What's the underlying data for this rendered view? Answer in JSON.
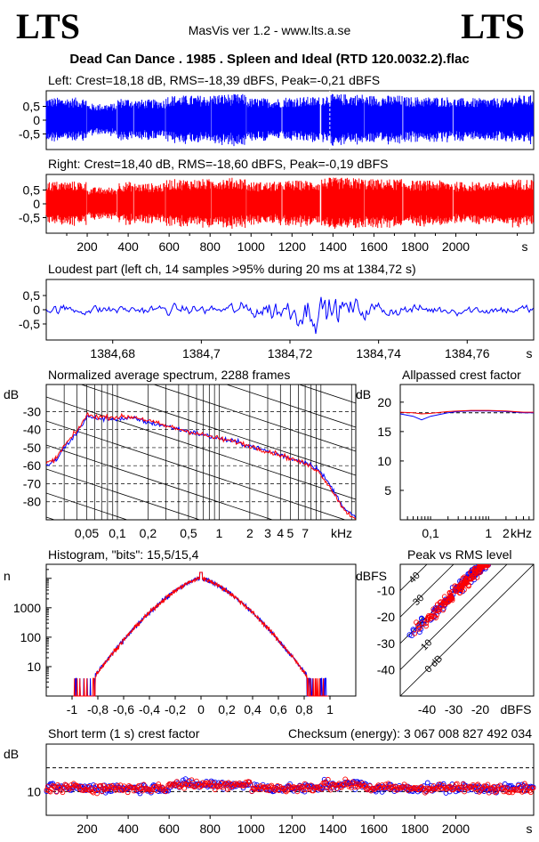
{
  "header": {
    "logo_left": "LTS",
    "logo_right": "LTS",
    "app": "MasVis ver 1.2 - www.lts.a.se",
    "track": "Dead Can Dance . 1985 . Spleen and Ideal (RTD 120.0032.2).flac"
  },
  "colors": {
    "left": "#0000ff",
    "right": "#ff0000",
    "axis": "#000000",
    "background": "#ffffff"
  },
  "chart_data": [
    {
      "id": "left",
      "type": "area",
      "title": "Left: Crest=18,18 dB, RMS=-18,39 dBFS, Peak=-0,21 dBFS",
      "color": "#0000ff",
      "y_ticks": [
        "0,5",
        "0",
        "-0,5"
      ],
      "ylim": [
        -1,
        1
      ],
      "xlim": [
        0,
        2380
      ],
      "segments": [
        [
          0,
          195,
          0.82
        ],
        [
          200,
          345,
          0.6
        ],
        [
          350,
          425,
          0.8
        ],
        [
          430,
          580,
          0.75
        ],
        [
          585,
          805,
          0.9
        ],
        [
          810,
          975,
          0.95
        ],
        [
          980,
          1150,
          0.8
        ],
        [
          1155,
          1335,
          0.85
        ],
        [
          1345,
          1550,
          0.95
        ],
        [
          1555,
          1740,
          0.9
        ],
        [
          1745,
          1985,
          0.85
        ],
        [
          1990,
          2260,
          0.8
        ],
        [
          2262,
          2380,
          0.9
        ]
      ],
      "marker_x": 1384.72
    },
    {
      "id": "right",
      "type": "area",
      "title": "Right: Crest=18,40 dB, RMS=-18,60 dBFS, Peak=-0,19 dBFS",
      "color": "#ff0000",
      "y_ticks": [
        "0,5",
        "0",
        "-0,5"
      ],
      "ylim": [
        -1,
        1
      ],
      "xlim": [
        0,
        2380
      ],
      "x_ticks": [
        "200",
        "400",
        "600",
        "800",
        "1000",
        "1200",
        "1400",
        "1600",
        "1800",
        "2000"
      ],
      "x_unit": "s",
      "segments": [
        [
          0,
          195,
          0.82
        ],
        [
          200,
          345,
          0.6
        ],
        [
          350,
          425,
          0.8
        ],
        [
          430,
          580,
          0.75
        ],
        [
          585,
          805,
          0.9
        ],
        [
          810,
          975,
          0.95
        ],
        [
          980,
          1150,
          0.8
        ],
        [
          1155,
          1335,
          0.85
        ],
        [
          1345,
          1550,
          0.95
        ],
        [
          1555,
          1740,
          0.9
        ],
        [
          1745,
          1985,
          0.85
        ],
        [
          1990,
          2260,
          0.8
        ],
        [
          2262,
          2380,
          0.9
        ]
      ]
    },
    {
      "id": "loudest",
      "type": "line",
      "title": "Loudest part (left  ch, 14 samples >95% during 20 ms at 1384,72 s)",
      "color": "#0000ff",
      "y_ticks": [
        "0,5",
        "0",
        "-0,5"
      ],
      "ylim": [
        -1,
        1
      ],
      "xlim": [
        1384.665,
        1384.775
      ],
      "x_ticks": [
        "1384,68",
        "1384,7",
        "1384,72",
        "1384,74",
        "1384,76"
      ],
      "x_tick_values": [
        1384.68,
        1384.7,
        1384.72,
        1384.74,
        1384.76
      ],
      "x_unit": "s"
    },
    {
      "id": "spectrum",
      "type": "line",
      "title": "Normalized average spectrum, 2288 frames",
      "ylabel": "dB",
      "y_ticks": [
        "-30",
        "-40",
        "-50",
        "-60",
        "-70",
        "-80"
      ],
      "y_tick_values": [
        -30,
        -40,
        -50,
        -60,
        -70,
        -80
      ],
      "ylim": [
        -90,
        -15
      ],
      "x_ticks": [
        "0,05",
        "0,1",
        "0,2",
        "0,5",
        "1",
        "2",
        "3",
        "4",
        "5",
        "7"
      ],
      "x_tick_values": [
        0.05,
        0.1,
        0.2,
        0.5,
        1,
        2,
        3,
        4,
        5,
        7
      ],
      "x_unit": "kHz",
      "x_scale": "log",
      "xlim": [
        0.02,
        22
      ],
      "series": [
        {
          "color": "#0000ff",
          "x": [
            0.02,
            0.025,
            0.03,
            0.04,
            0.05,
            0.07,
            0.1,
            0.15,
            0.2,
            0.3,
            0.5,
            0.7,
            1,
            1.5,
            2,
            3,
            4,
            5,
            7,
            9,
            11,
            13,
            15,
            18,
            22
          ],
          "y": [
            -60,
            -57,
            -50,
            -42,
            -33,
            -34,
            -34,
            -34,
            -36,
            -38,
            -41,
            -43,
            -45,
            -47,
            -49,
            -52,
            -54,
            -56,
            -58,
            -61,
            -67,
            -73,
            -79,
            -85,
            -89
          ]
        },
        {
          "color": "#ff0000",
          "x": [
            0.02,
            0.025,
            0.03,
            0.04,
            0.05,
            0.07,
            0.1,
            0.15,
            0.2,
            0.3,
            0.5,
            0.7,
            1,
            1.5,
            2,
            3,
            4,
            5,
            7,
            9,
            11,
            13,
            15,
            18,
            22
          ],
          "y": [
            -59,
            -56,
            -49,
            -41,
            -32,
            -33,
            -33,
            -33,
            -35,
            -38,
            -41,
            -43,
            -45,
            -47,
            -49,
            -52,
            -54,
            -56,
            -59,
            -62,
            -68,
            -74,
            -80,
            -86,
            -89
          ]
        }
      ]
    },
    {
      "id": "allpass",
      "type": "line",
      "title": "Allpassed crest factor",
      "ylabel": "dB",
      "y_ticks": [
        "20",
        "15",
        "10",
        "5"
      ],
      "y_tick_values": [
        20,
        15,
        10,
        5
      ],
      "ylim": [
        0,
        23
      ],
      "x_ticks": [
        "0,1",
        "1",
        "2",
        "kHz"
      ],
      "x_tick_values": [
        0.1,
        1,
        2
      ],
      "x_scale": "log",
      "xlim": [
        0.03,
        6
      ],
      "reference": 18.2,
      "series": [
        {
          "color": "#0000ff",
          "x": [
            0.03,
            0.05,
            0.07,
            0.1,
            0.2,
            0.3,
            0.5,
            1,
            2,
            4,
            6
          ],
          "y": [
            18.0,
            17.6,
            17.0,
            17.6,
            18.2,
            18.4,
            18.5,
            18.5,
            18.4,
            18.2,
            18.2
          ]
        },
        {
          "color": "#ff0000",
          "x": [
            0.03,
            0.05,
            0.07,
            0.1,
            0.2,
            0.3,
            0.5,
            1,
            2,
            4,
            6
          ],
          "y": [
            18.3,
            18.2,
            18.0,
            18.1,
            18.4,
            18.5,
            18.6,
            18.6,
            18.5,
            18.3,
            18.3
          ]
        }
      ]
    },
    {
      "id": "histogram",
      "type": "line",
      "title": "Histogram, \"bits\": 15,5/15,4",
      "ylabel": "n",
      "y_ticks": [
        "1000",
        "100",
        "10"
      ],
      "y_tick_values": [
        1000,
        100,
        10
      ],
      "y_scale": "log",
      "ylim": [
        1,
        30000
      ],
      "x_ticks": [
        "-1",
        "-0,8",
        "-0,6",
        "-0,4",
        "-0,2",
        "0",
        "0,2",
        "0,4",
        "0,6",
        "0,8",
        "1"
      ],
      "x_tick_values": [
        -1,
        -0.8,
        -0.6,
        -0.4,
        -0.2,
        0,
        0.2,
        0.4,
        0.6,
        0.8,
        1
      ],
      "xlim": [
        -1.2,
        1.2
      ],
      "peak": 10000,
      "series": [
        {
          "color": "#0000ff"
        },
        {
          "color": "#ff0000"
        }
      ]
    },
    {
      "id": "peak_rms",
      "type": "scatter",
      "title": "Peak vs RMS level",
      "ylabel": "dBFS",
      "xlabel": "dBFS",
      "y_ticks": [
        "-10",
        "-20",
        "-30",
        "-40"
      ],
      "y_tick_values": [
        -10,
        -20,
        -30,
        -40
      ],
      "x_ticks": [
        "-40",
        "-30",
        "-20"
      ],
      "x_tick_values": [
        -40,
        -30,
        -20
      ],
      "xlim": [
        -50,
        0
      ],
      "ylim": [
        -50,
        0
      ],
      "diagonal_labels": [
        "40",
        "30",
        "20",
        "10",
        "0 dB"
      ],
      "diagonal_offsets": [
        40,
        30,
        20,
        10,
        0
      ],
      "series": [
        {
          "color": "#0000ff"
        },
        {
          "color": "#ff0000"
        }
      ]
    },
    {
      "id": "short_term",
      "type": "scatter",
      "title": "Short term (1 s) crest factor",
      "checksum": "Checksum (energy):  3 067 008 827 492 034",
      "ylabel": "dB",
      "y_ticks": [
        "10"
      ],
      "y_tick_values": [
        10
      ],
      "ylim": [
        0,
        30
      ],
      "reference": 20,
      "x_ticks": [
        "200",
        "400",
        "600",
        "800",
        "1000",
        "1200",
        "1400",
        "1600",
        "1800",
        "2000"
      ],
      "x_unit": "s",
      "xlim": [
        0,
        2380
      ],
      "series": [
        {
          "color": "#0000ff"
        },
        {
          "color": "#ff0000"
        }
      ]
    }
  ]
}
